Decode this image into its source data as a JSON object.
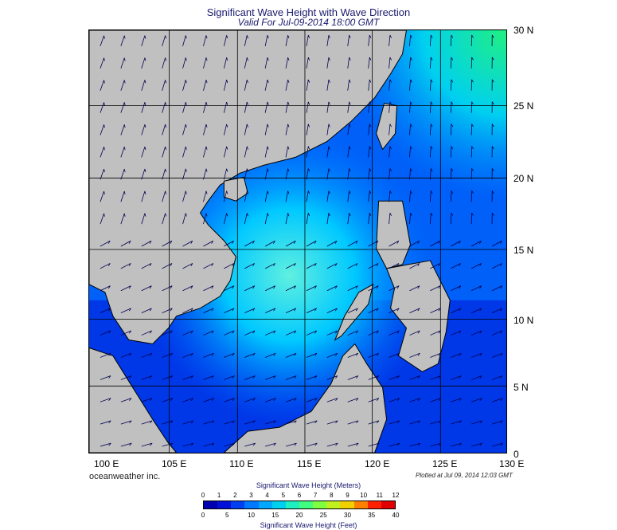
{
  "title": "Significant Wave Height with Wave Direction",
  "subtitle": "Valid For Jul-09-2014 18:00 GMT",
  "lon_labels": [
    "100 E",
    "105 E",
    "110 E",
    "115 E",
    "120 E",
    "125 E",
    "130 E"
  ],
  "lat_labels": [
    "30 N",
    "25 N",
    "20 N",
    "15 N",
    "10 N",
    "5 N",
    "0"
  ],
  "credit": "oceanweather inc.",
  "plotted_at": "Plotted at Jul 09, 2014 12:03 GMT",
  "colorbar": {
    "title_meters": "Significant Wave Height (Meters)",
    "title_feet": "Significant Wave Height (Feet)",
    "meters_ticks": [
      "0",
      "1",
      "2",
      "3",
      "4",
      "5",
      "6",
      "7",
      "8",
      "9",
      "10",
      "11",
      "12"
    ],
    "feet_ticks": [
      "0",
      "5",
      "10",
      "15",
      "20",
      "25",
      "30",
      "35",
      "40"
    ],
    "colors": [
      "#0000b0",
      "#0010d8",
      "#0040f0",
      "#0078ff",
      "#00a8ff",
      "#00d0f0",
      "#20f0c0",
      "#40ff80",
      "#80ff40",
      "#c0f020",
      "#f0d000",
      "#ff8000",
      "#ff2000",
      "#e00000"
    ]
  },
  "legend_colors": {
    "land": "#c0c0c0",
    "ocean_low": "#0030e0",
    "ocean_mid": "#00a0ff",
    "ocean_high": "#30e0d0",
    "arrows": "#000060"
  }
}
